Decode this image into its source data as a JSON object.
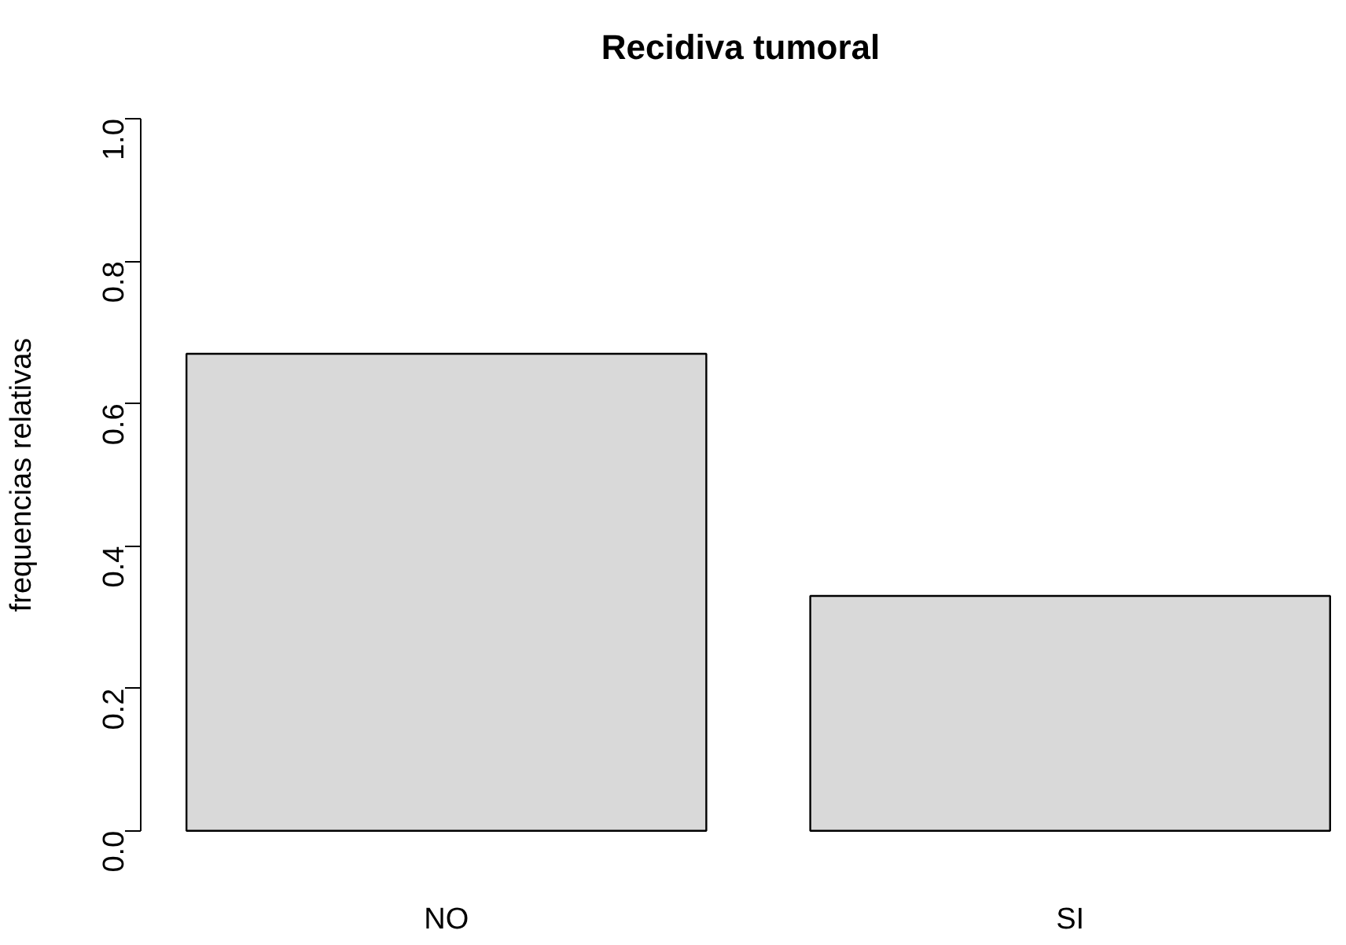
{
  "chart_data": {
    "type": "bar",
    "title": "Recidiva tumoral",
    "ylabel": "frequencias relativas",
    "categories": [
      "NO",
      "SI"
    ],
    "values": [
      0.67,
      0.33
    ],
    "color": "#d9d9d9",
    "ylim": [
      0,
      1
    ],
    "yticks": [
      {
        "value": 0,
        "label": "0.0"
      },
      {
        "value": 0.2,
        "label": "0.2"
      },
      {
        "value": 0.4,
        "label": "0.4"
      },
      {
        "value": 0.6,
        "label": "0.6"
      },
      {
        "value": 0.8,
        "label": "0.8"
      },
      {
        "value": 1,
        "label": "1.0"
      }
    ]
  }
}
